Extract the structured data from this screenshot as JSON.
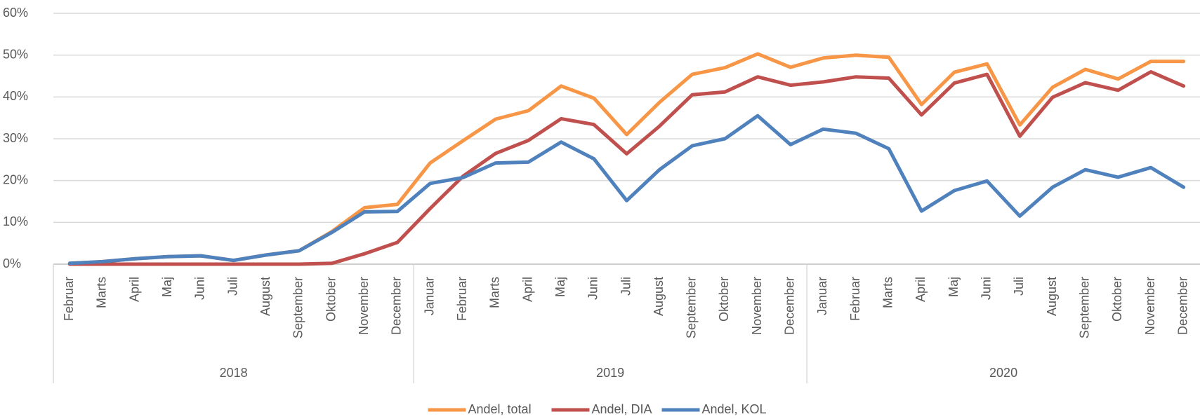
{
  "chart_data": {
    "type": "line",
    "category_groups": [
      {
        "label": "2018",
        "categories": [
          "Februar",
          "Marts",
          "April",
          "Maj",
          "Juni",
          "Juli",
          "August",
          "September",
          "Oktober",
          "November",
          "December"
        ]
      },
      {
        "label": "2019",
        "categories": [
          "Januar",
          "Februar",
          "Marts",
          "April",
          "Maj",
          "Juni",
          "Juli",
          "August",
          "September",
          "Oktober",
          "November",
          "December"
        ]
      },
      {
        "label": "2020",
        "categories": [
          "Januar",
          "Februar",
          "Marts",
          "April",
          "Maj",
          "Juni",
          "Juli",
          "August",
          "September",
          "Oktober",
          "November",
          "December"
        ]
      }
    ],
    "series": [
      {
        "name": "Andel, total",
        "color": "#f79646",
        "values": [
          0.2,
          0.6,
          1.3,
          1.8,
          2.0,
          0.9,
          2.2,
          3.2,
          7.8,
          13.5,
          14.3,
          24.2,
          29.5,
          34.7,
          36.7,
          42.6,
          39.7,
          31.0,
          38.7,
          45.4,
          47.0,
          50.3,
          47.1,
          49.3,
          50.0,
          49.5,
          38.2,
          45.9,
          47.9,
          33.3,
          42.3,
          46.6,
          44.3,
          48.5,
          48.5
        ]
      },
      {
        "name": "Andel, DIA",
        "color": "#c0504d",
        "values": [
          0,
          0,
          0,
          0,
          0,
          0,
          0,
          0,
          0.2,
          2.5,
          5.2,
          13.3,
          21.0,
          26.5,
          29.6,
          34.8,
          33.4,
          26.4,
          33.0,
          40.5,
          41.2,
          44.8,
          42.8,
          43.6,
          44.8,
          44.5,
          35.7,
          43.3,
          45.4,
          30.6,
          39.9,
          43.4,
          41.6,
          46.0,
          42.6
        ]
      },
      {
        "name": "Andel, KOL",
        "color": "#4f81bd",
        "values": [
          0.2,
          0.6,
          1.3,
          1.8,
          2.0,
          0.9,
          2.2,
          3.2,
          7.6,
          12.5,
          12.6,
          19.3,
          20.7,
          24.2,
          24.4,
          29.2,
          25.2,
          15.2,
          22.6,
          28.3,
          30.0,
          35.5,
          28.6,
          32.3,
          31.3,
          27.6,
          12.7,
          17.6,
          19.9,
          11.5,
          18.4,
          22.6,
          20.8,
          23.1,
          18.4
        ]
      }
    ],
    "ylim": [
      0,
      60
    ],
    "yticks": [
      {
        "value": 0,
        "label": "0%"
      },
      {
        "value": 10,
        "label": "10%"
      },
      {
        "value": 20,
        "label": "20%"
      },
      {
        "value": 30,
        "label": "30%"
      },
      {
        "value": 40,
        "label": "40%"
      },
      {
        "value": 50,
        "label": "50%"
      },
      {
        "value": 60,
        "label": "60%"
      }
    ],
    "grid": true,
    "legend": "bottom"
  }
}
